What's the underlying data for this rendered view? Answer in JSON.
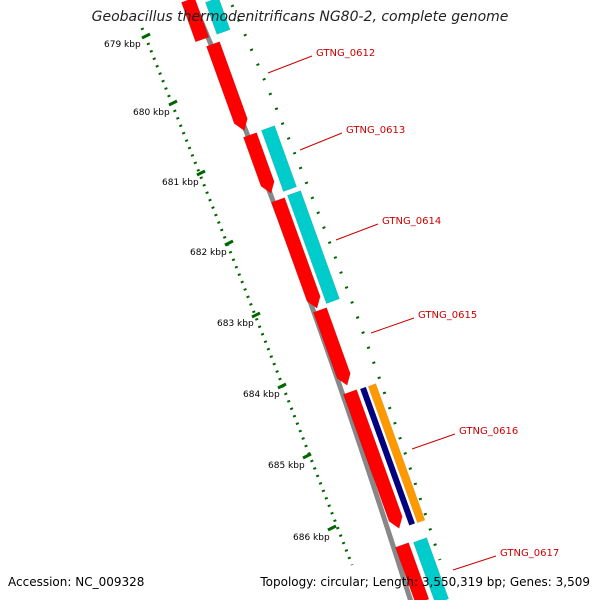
{
  "title": "Geobacillus thermodenitrificans NG80-2, complete genome",
  "footer": {
    "accession": "Accession: NC_009328",
    "summary": "Topology: circular; Length: 3,550,319 bp; Genes: 3,509"
  },
  "colors": {
    "forward_gene": "#ff0000",
    "reverse_gene": "#00cccc",
    "orange_gene": "#ff9900",
    "navy_gene": "#000080",
    "backbone": "#888888",
    "ticks": "#006600",
    "label": "#cc0000"
  },
  "ticks": [
    {
      "kbp": 679,
      "label": "679 kbp"
    },
    {
      "kbp": 680,
      "label": "680 kbp"
    },
    {
      "kbp": 681,
      "label": "681 kbp"
    },
    {
      "kbp": 682,
      "label": "682 kbp"
    },
    {
      "kbp": 683,
      "label": "683 kbp"
    },
    {
      "kbp": 684,
      "label": "684 kbp"
    },
    {
      "kbp": 685,
      "label": "685 kbp"
    },
    {
      "kbp": 686,
      "label": "686 kbp"
    }
  ],
  "genes": [
    {
      "label": "GTNG_0612"
    },
    {
      "label": "GTNG_0613"
    },
    {
      "label": "GTNG_0614"
    },
    {
      "label": "GTNG_0615"
    },
    {
      "label": "GTNG_0616"
    },
    {
      "label": "GTNG_0617"
    }
  ]
}
